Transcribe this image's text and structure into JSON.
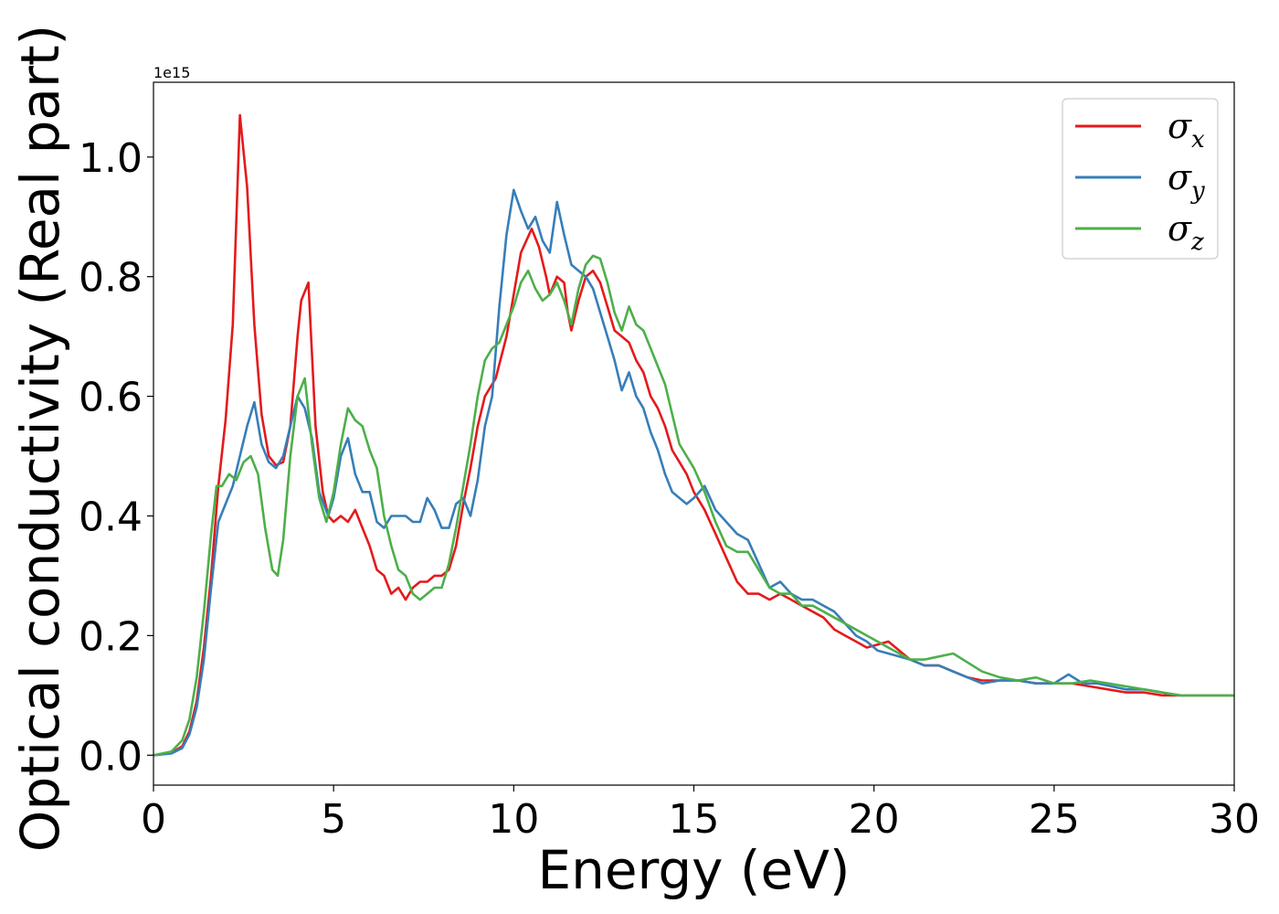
{
  "chart_data": {
    "type": "line",
    "xlabel": "Energy (eV)",
    "ylabel": "Optical conductivity (Real part)",
    "y_offset_label": "1e15",
    "xlim": [
      0,
      30
    ],
    "ylim": [
      -0.05,
      1.125
    ],
    "xticks": [
      0,
      5,
      10,
      15,
      20,
      25,
      30
    ],
    "xtick_labels": [
      "0",
      "5",
      "10",
      "15",
      "20",
      "25",
      "30"
    ],
    "yticks": [
      0.0,
      0.2,
      0.4,
      0.6,
      0.8,
      1.0
    ],
    "ytick_labels": [
      "0.0",
      "0.2",
      "0.4",
      "0.6",
      "0.8",
      "1.0"
    ],
    "grid": false,
    "legend_position": "top-right",
    "series": [
      {
        "name": "σx",
        "legend": {
          "base": "σ",
          "sub": "x"
        },
        "color": "#e41a1c",
        "x": [
          0,
          0.5,
          0.8,
          1.0,
          1.2,
          1.4,
          1.6,
          1.8,
          2.0,
          2.2,
          2.4,
          2.6,
          2.8,
          3.0,
          3.2,
          3.4,
          3.6,
          3.8,
          4.0,
          4.1,
          4.3,
          4.5,
          4.7,
          4.85,
          5.0,
          5.2,
          5.4,
          5.6,
          5.8,
          6.0,
          6.2,
          6.4,
          6.6,
          6.8,
          7.0,
          7.2,
          7.4,
          7.6,
          7.8,
          8.0,
          8.2,
          8.4,
          8.6,
          8.8,
          9.0,
          9.2,
          9.5,
          9.8,
          10.0,
          10.2,
          10.5,
          10.7,
          10.9,
          11.0,
          11.2,
          11.4,
          11.5,
          11.6,
          11.8,
          12.0,
          12.2,
          12.4,
          12.6,
          12.8,
          13.0,
          13.2,
          13.4,
          13.6,
          13.8,
          14.0,
          14.2,
          14.4,
          14.6,
          14.8,
          15.0,
          15.3,
          15.6,
          15.9,
          16.2,
          16.5,
          16.8,
          17.1,
          17.4,
          17.7,
          18.0,
          18.3,
          18.6,
          18.9,
          19.2,
          19.5,
          19.8,
          20.1,
          20.4,
          20.7,
          21.0,
          21.4,
          21.8,
          22.2,
          22.6,
          23.0,
          23.5,
          24.0,
          24.5,
          25.0,
          25.5,
          26.0,
          26.5,
          27.0,
          27.5,
          28.0,
          28.5,
          29.0,
          29.5,
          30.0
        ],
        "y": [
          0.0,
          0.004,
          0.015,
          0.04,
          0.09,
          0.18,
          0.3,
          0.45,
          0.56,
          0.72,
          1.07,
          0.95,
          0.72,
          0.57,
          0.5,
          0.485,
          0.49,
          0.55,
          0.7,
          0.76,
          0.79,
          0.55,
          0.44,
          0.4,
          0.39,
          0.4,
          0.39,
          0.41,
          0.38,
          0.35,
          0.31,
          0.3,
          0.27,
          0.28,
          0.26,
          0.28,
          0.29,
          0.29,
          0.3,
          0.3,
          0.31,
          0.35,
          0.42,
          0.48,
          0.55,
          0.6,
          0.63,
          0.7,
          0.77,
          0.84,
          0.88,
          0.85,
          0.8,
          0.77,
          0.8,
          0.79,
          0.74,
          0.71,
          0.76,
          0.8,
          0.81,
          0.79,
          0.75,
          0.71,
          0.7,
          0.69,
          0.66,
          0.64,
          0.6,
          0.58,
          0.55,
          0.51,
          0.49,
          0.47,
          0.44,
          0.41,
          0.37,
          0.33,
          0.29,
          0.27,
          0.27,
          0.26,
          0.27,
          0.26,
          0.25,
          0.24,
          0.23,
          0.21,
          0.2,
          0.19,
          0.18,
          0.185,
          0.19,
          0.175,
          0.16,
          0.15,
          0.15,
          0.14,
          0.13,
          0.125,
          0.125,
          0.125,
          0.12,
          0.12,
          0.12,
          0.115,
          0.11,
          0.105,
          0.105,
          0.1,
          0.1,
          0.1,
          0.1,
          0.1
        ]
      },
      {
        "name": "σy",
        "legend": {
          "base": "σ",
          "sub": "y"
        },
        "color": "#377eb8",
        "x": [
          0,
          0.5,
          0.8,
          1.0,
          1.2,
          1.4,
          1.6,
          1.8,
          2.0,
          2.2,
          2.4,
          2.6,
          2.8,
          3.0,
          3.2,
          3.4,
          3.6,
          3.8,
          4.0,
          4.2,
          4.4,
          4.6,
          4.85,
          5.0,
          5.2,
          5.4,
          5.6,
          5.8,
          6.0,
          6.2,
          6.4,
          6.6,
          6.8,
          7.0,
          7.2,
          7.4,
          7.6,
          7.8,
          8.0,
          8.2,
          8.4,
          8.6,
          8.8,
          9.0,
          9.2,
          9.4,
          9.6,
          9.8,
          10.0,
          10.2,
          10.4,
          10.6,
          10.8,
          11.0,
          11.2,
          11.4,
          11.6,
          11.8,
          12.0,
          12.2,
          12.4,
          12.6,
          12.8,
          13.0,
          13.2,
          13.4,
          13.6,
          13.8,
          14.0,
          14.2,
          14.4,
          14.6,
          14.8,
          15.0,
          15.3,
          15.6,
          15.9,
          16.2,
          16.5,
          16.8,
          17.1,
          17.4,
          17.7,
          18.0,
          18.3,
          18.6,
          18.9,
          19.2,
          19.5,
          19.8,
          20.1,
          20.4,
          20.7,
          21.0,
          21.4,
          21.8,
          22.2,
          22.6,
          23.0,
          23.5,
          24.0,
          24.5,
          25.0,
          25.4,
          25.8,
          26.2,
          26.6,
          27.0,
          27.5,
          28.0,
          28.5,
          29.0,
          29.5,
          30.0
        ],
        "y": [
          0.0,
          0.003,
          0.012,
          0.035,
          0.08,
          0.16,
          0.28,
          0.39,
          0.42,
          0.45,
          0.5,
          0.55,
          0.59,
          0.52,
          0.49,
          0.48,
          0.5,
          0.55,
          0.6,
          0.58,
          0.53,
          0.44,
          0.4,
          0.43,
          0.5,
          0.53,
          0.47,
          0.44,
          0.44,
          0.39,
          0.38,
          0.4,
          0.4,
          0.4,
          0.39,
          0.39,
          0.43,
          0.41,
          0.38,
          0.38,
          0.42,
          0.43,
          0.4,
          0.46,
          0.55,
          0.6,
          0.75,
          0.87,
          0.945,
          0.91,
          0.88,
          0.9,
          0.86,
          0.84,
          0.925,
          0.87,
          0.82,
          0.81,
          0.8,
          0.78,
          0.74,
          0.7,
          0.66,
          0.61,
          0.64,
          0.6,
          0.58,
          0.54,
          0.51,
          0.47,
          0.44,
          0.43,
          0.42,
          0.43,
          0.45,
          0.41,
          0.39,
          0.37,
          0.36,
          0.32,
          0.28,
          0.29,
          0.27,
          0.26,
          0.26,
          0.25,
          0.24,
          0.22,
          0.2,
          0.19,
          0.175,
          0.17,
          0.165,
          0.16,
          0.15,
          0.15,
          0.14,
          0.13,
          0.12,
          0.125,
          0.125,
          0.12,
          0.12,
          0.135,
          0.12,
          0.12,
          0.115,
          0.11,
          0.11,
          0.105,
          0.1,
          0.1,
          0.1,
          0.1
        ]
      },
      {
        "name": "σz",
        "legend": {
          "base": "σ",
          "sub": "z"
        },
        "color": "#4daf4a",
        "x": [
          0,
          0.5,
          0.8,
          1.0,
          1.2,
          1.4,
          1.6,
          1.75,
          1.9,
          2.1,
          2.3,
          2.5,
          2.7,
          2.9,
          3.1,
          3.3,
          3.45,
          3.6,
          3.8,
          4.0,
          4.2,
          4.4,
          4.6,
          4.8,
          5.0,
          5.2,
          5.4,
          5.6,
          5.8,
          6.0,
          6.2,
          6.4,
          6.6,
          6.8,
          7.0,
          7.2,
          7.4,
          7.6,
          7.8,
          8.0,
          8.2,
          8.4,
          8.6,
          8.8,
          9.0,
          9.2,
          9.4,
          9.6,
          9.8,
          10.0,
          10.2,
          10.4,
          10.6,
          10.8,
          11.0,
          11.2,
          11.4,
          11.6,
          11.8,
          12.0,
          12.2,
          12.4,
          12.6,
          12.8,
          13.0,
          13.2,
          13.4,
          13.6,
          13.8,
          14.0,
          14.2,
          14.4,
          14.6,
          14.8,
          15.0,
          15.3,
          15.6,
          15.9,
          16.2,
          16.5,
          16.8,
          17.1,
          17.4,
          17.7,
          18.0,
          18.3,
          18.6,
          18.9,
          19.2,
          19.5,
          19.8,
          20.1,
          20.4,
          20.7,
          21.0,
          21.4,
          21.8,
          22.2,
          22.6,
          23.0,
          23.5,
          24.0,
          24.5,
          25.0,
          25.5,
          26.0,
          26.5,
          27.0,
          27.5,
          28.0,
          28.5,
          29.0,
          29.5,
          30.0
        ],
        "y": [
          0.0,
          0.006,
          0.025,
          0.06,
          0.13,
          0.24,
          0.37,
          0.45,
          0.45,
          0.47,
          0.46,
          0.49,
          0.5,
          0.47,
          0.38,
          0.31,
          0.3,
          0.36,
          0.5,
          0.6,
          0.63,
          0.52,
          0.43,
          0.39,
          0.44,
          0.52,
          0.58,
          0.56,
          0.55,
          0.51,
          0.48,
          0.4,
          0.35,
          0.31,
          0.3,
          0.27,
          0.26,
          0.27,
          0.28,
          0.28,
          0.32,
          0.38,
          0.45,
          0.52,
          0.6,
          0.66,
          0.68,
          0.69,
          0.72,
          0.75,
          0.79,
          0.81,
          0.78,
          0.76,
          0.77,
          0.79,
          0.76,
          0.72,
          0.78,
          0.82,
          0.835,
          0.83,
          0.79,
          0.74,
          0.71,
          0.75,
          0.72,
          0.71,
          0.68,
          0.65,
          0.62,
          0.57,
          0.52,
          0.5,
          0.48,
          0.44,
          0.39,
          0.35,
          0.34,
          0.34,
          0.31,
          0.28,
          0.27,
          0.27,
          0.25,
          0.25,
          0.24,
          0.23,
          0.22,
          0.21,
          0.2,
          0.19,
          0.18,
          0.17,
          0.16,
          0.16,
          0.165,
          0.17,
          0.155,
          0.14,
          0.13,
          0.125,
          0.13,
          0.12,
          0.12,
          0.125,
          0.12,
          0.115,
          0.11,
          0.105,
          0.1,
          0.1,
          0.1,
          0.1
        ]
      }
    ]
  }
}
